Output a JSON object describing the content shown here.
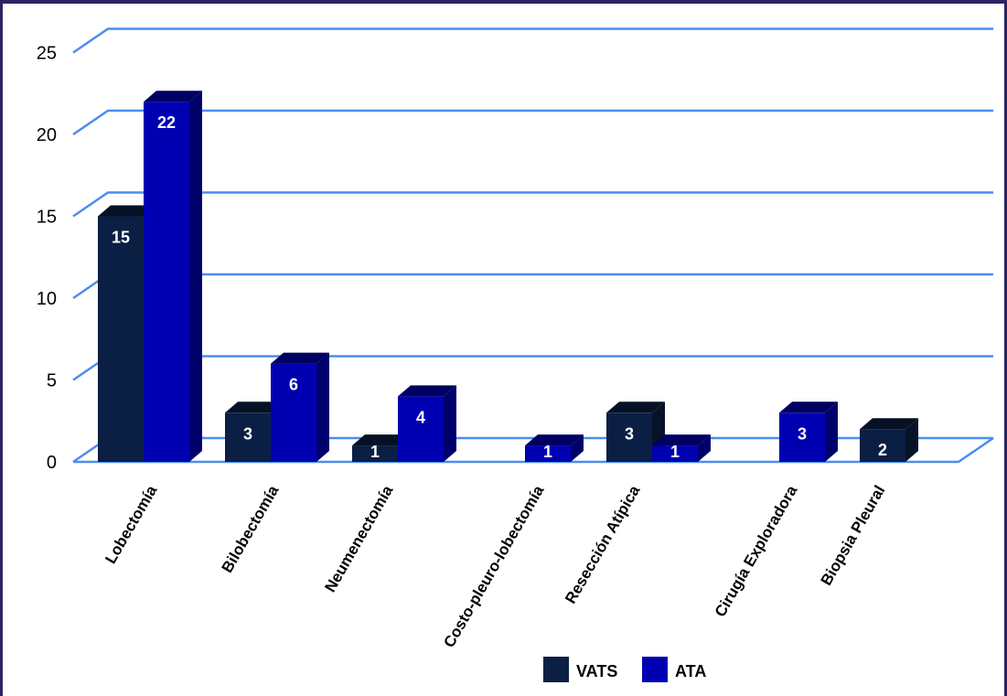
{
  "chart_data": {
    "type": "bar",
    "title": "",
    "xlabel": "",
    "ylabel": "",
    "ylim": [
      0,
      25
    ],
    "yticks": [
      0,
      5,
      10,
      15,
      20,
      25
    ],
    "grid": true,
    "legend_position": "bottom",
    "categories": [
      "Lobectomía",
      "Bilobectomía",
      "Neumenectomía",
      "Costo-pleuro-lobectomía",
      "Resección Atípica",
      "Cirugía Exploradora",
      "Biopsia Pleural"
    ],
    "series": [
      {
        "name": "VATS",
        "color": "#0b1f44",
        "values": [
          15,
          3,
          1,
          null,
          3,
          null,
          2
        ]
      },
      {
        "name": "ATA",
        "color": "#0000b3",
        "values": [
          22,
          6,
          4,
          1,
          1,
          3,
          null
        ]
      }
    ],
    "data_labels": true
  },
  "colors": {
    "gridline": "#4a8df0",
    "frame": "#2b2563"
  }
}
